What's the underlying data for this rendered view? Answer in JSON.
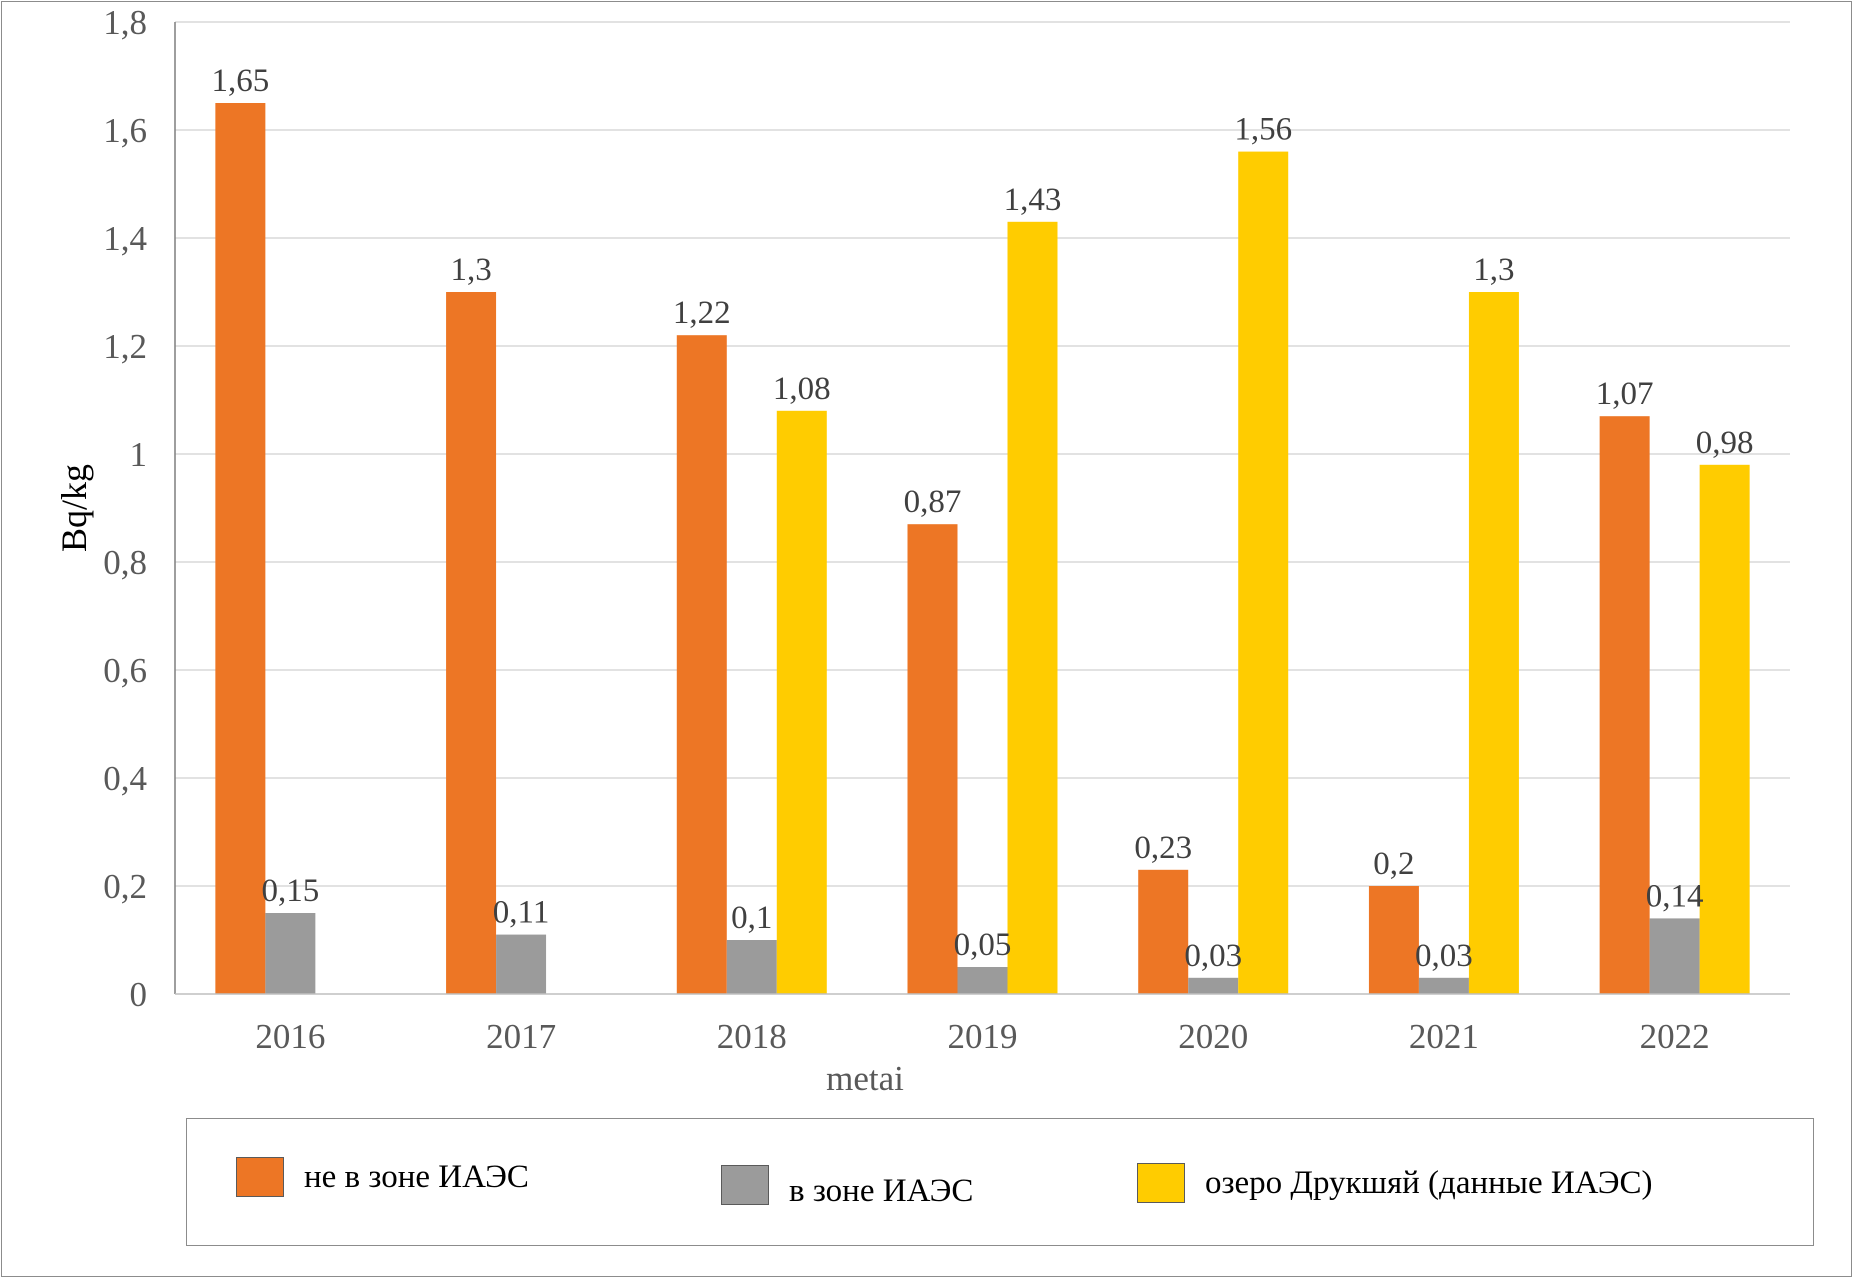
{
  "chart_data": {
    "type": "bar",
    "title": "",
    "xlabel": "metai",
    "ylabel": "Bq/kg",
    "ylim": [
      0,
      1.8
    ],
    "ytick_step": 0.2,
    "yticks": [
      "0",
      "0,2",
      "0,4",
      "0,6",
      "0,8",
      "1",
      "1,2",
      "1,4",
      "1,6",
      "1,8"
    ],
    "grid": true,
    "legend_position": "bottom",
    "categories": [
      "2016",
      "2017",
      "2018",
      "2019",
      "2020",
      "2021",
      "2022"
    ],
    "series": [
      {
        "name": "не в зоне ИАЭС",
        "color": "#ED7625",
        "values": [
          1.65,
          1.3,
          1.22,
          0.87,
          0.23,
          0.2,
          1.07
        ],
        "labels": [
          "1,65",
          "1,3",
          "1,22",
          "0,87",
          "0,23",
          "0,2",
          "1,07"
        ]
      },
      {
        "name": "в зоне ИАЭС",
        "color": "#9B9B9B",
        "values": [
          0.15,
          0.11,
          0.1,
          0.05,
          0.03,
          0.03,
          0.14
        ],
        "labels": [
          "0,15",
          "0,11",
          "0,1",
          "0,05",
          "0,03",
          "0,03",
          "0,14"
        ]
      },
      {
        "name": "озеро Друкшяй (данные ИАЭС)",
        "color": "#FFCC00",
        "values": [
          null,
          null,
          1.08,
          1.43,
          1.56,
          1.3,
          0.98
        ],
        "labels": [
          "",
          "",
          "1,08",
          "1,43",
          "1,56",
          "1,3",
          "0,98"
        ]
      }
    ]
  },
  "legend": {
    "items": [
      {
        "label": "не в зоне ИАЭС",
        "color": "#ED7625"
      },
      {
        "label": "в зоне ИАЭС",
        "color": "#9B9B9B"
      },
      {
        "label": "озеро Друкшяй (данные ИАЭС)",
        "color": "#FFCC00"
      }
    ]
  }
}
